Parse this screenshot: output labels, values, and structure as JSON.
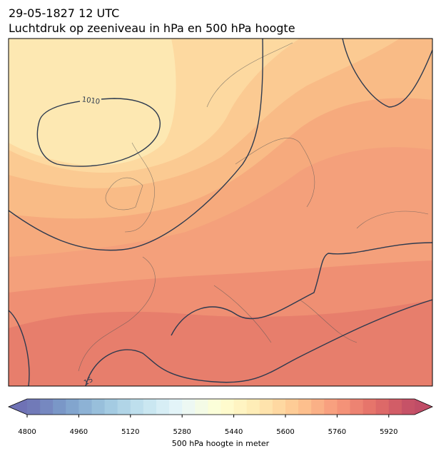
{
  "title": "29-05-1827 12 UTC",
  "subtitle": "Luchtdruk op zeeniveau in hPa en 500 hPa hoogte",
  "map": {
    "contour_labels": [
      "1010",
      "15"
    ]
  },
  "colorbar": {
    "label": "500 hPa hoogte in meter",
    "range": [
      4800,
      6000
    ],
    "ticks": [
      4800,
      4960,
      5120,
      5280,
      5440,
      5600,
      5760,
      5920
    ],
    "bins": 30,
    "colormap": [
      "#313695",
      "#4575b4",
      "#74add1",
      "#abd9e9",
      "#e0f3f8",
      "#ffffbf",
      "#fee090",
      "#fdae61",
      "#f46d43",
      "#d73027",
      "#a50026"
    ],
    "alpha": 0.7
  }
}
